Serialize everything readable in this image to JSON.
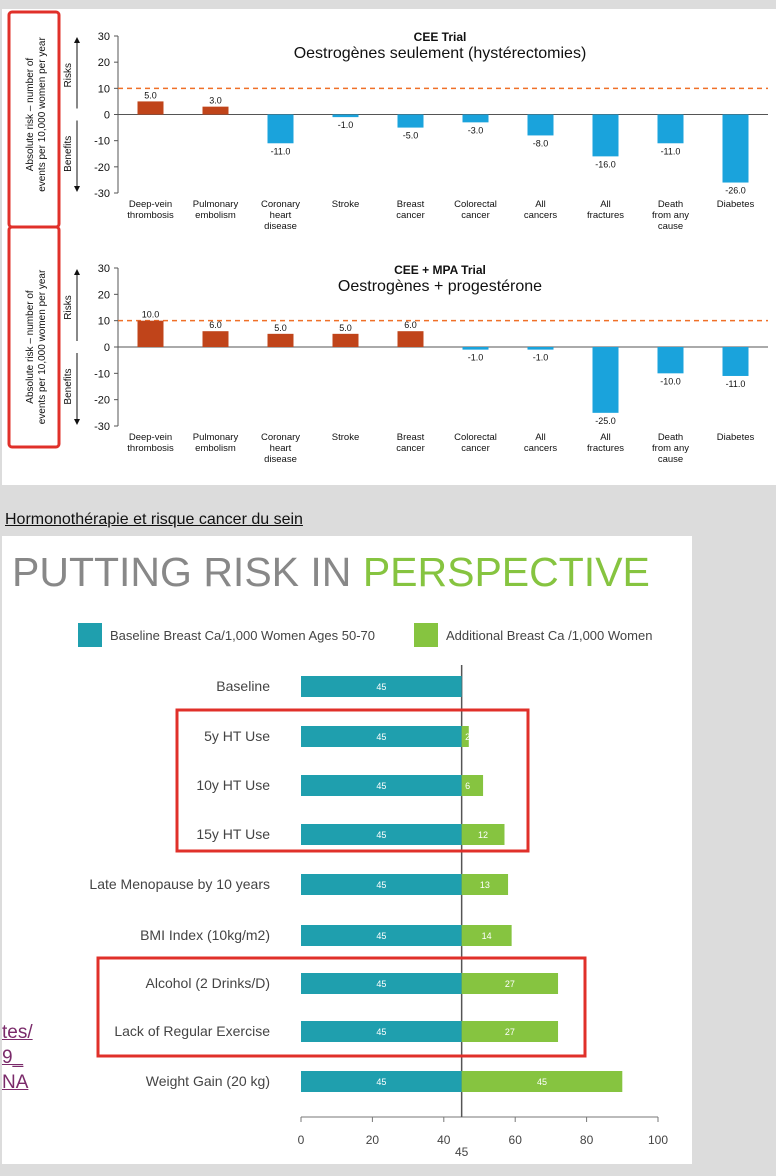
{
  "section_title": "Hormonothérapie et risque cancer du sein",
  "left_link_fragments": [
    "tes/",
    "9_",
    "NA"
  ],
  "colors": {
    "risk": "#c0441a",
    "benefit": "#1aa3dc",
    "baseline": "#1f9fae",
    "additional": "#86c440",
    "highlight": "#e0302a",
    "threshold": "#f07028"
  },
  "chart_data": [
    {
      "type": "bar",
      "title": "CEE Trial",
      "subtitle": "Oestrogènes seulement (hystérectomies)",
      "ylabel": "Absolute risk – number of events per 10,000 women per year",
      "risk_label": "Risks",
      "benefit_label": "Benefits",
      "ylim": [
        -30,
        30
      ],
      "yticks": [
        30,
        20,
        10,
        0,
        -10,
        -20,
        -30
      ],
      "threshold": 10,
      "categories": [
        [
          "Deep-vein",
          "thrombosis"
        ],
        [
          "Pulmonary",
          "embolism"
        ],
        [
          "Coronary",
          "heart",
          "disease"
        ],
        [
          "Stroke"
        ],
        [
          "Breast",
          "cancer"
        ],
        [
          "Colorectal",
          "cancer"
        ],
        [
          "All",
          "cancers"
        ],
        [
          "All",
          "fractures"
        ],
        [
          "Death",
          "from any",
          "cause"
        ],
        [
          "Diabetes"
        ]
      ],
      "values": [
        5.0,
        3.0,
        -11.0,
        -1.0,
        -5.0,
        -3.0,
        -8.0,
        -16.0,
        -11.0,
        -26.0
      ],
      "value_labels": [
        "5.0",
        "3.0",
        "-11.0",
        "-1.0",
        "-5.0",
        "-3.0",
        "-8.0",
        "-16.0",
        "-11.0",
        "-26.0"
      ]
    },
    {
      "type": "bar",
      "title": "CEE + MPA Trial",
      "subtitle": "Oestrogènes + progestérone",
      "ylabel": "Absolute risk – number of events per 10,000 women per year",
      "risk_label": "Risks",
      "benefit_label": "Benefits",
      "ylim": [
        -30,
        30
      ],
      "yticks": [
        30,
        20,
        10,
        0,
        -10,
        -20,
        -30
      ],
      "threshold": 10,
      "categories": [
        [
          "Deep-vein",
          "thrombosis"
        ],
        [
          "Pulmonary",
          "embolism"
        ],
        [
          "Coronary",
          "heart",
          "disease"
        ],
        [
          "Stroke"
        ],
        [
          "Breast",
          "cancer"
        ],
        [
          "Colorectal",
          "cancer"
        ],
        [
          "All",
          "cancers"
        ],
        [
          "All",
          "fractures"
        ],
        [
          "Death",
          "from any",
          "cause"
        ],
        [
          "Diabetes"
        ]
      ],
      "values": [
        10.0,
        6.0,
        5.0,
        5.0,
        6.0,
        -1.0,
        -1.0,
        -25.0,
        -10.0,
        -11.0
      ],
      "value_labels": [
        "10.0",
        "6.0",
        "5.0",
        "5.0",
        "6.0",
        "-1.0",
        "-1.0",
        "-25.0",
        "-10.0",
        "-11.0"
      ]
    },
    {
      "type": "bar",
      "orientation": "horizontal-stacked",
      "title_part1": "PUTTING RISK IN ",
      "title_part2": "PERSPECTIVE",
      "legend": [
        "Baseline Breast Ca/1,000 Women Ages 50-70",
        "Additional Breast Ca /1,000 Women"
      ],
      "xlim": [
        0,
        100
      ],
      "xticks": [
        "0",
        "20",
        "40",
        "60",
        "80",
        "100"
      ],
      "reference_label": "45",
      "reference_value": 45,
      "categories": [
        "Baseline",
        "5y HT Use",
        "10y HT Use",
        "15y HT Use",
        "Late Menopause by 10 years",
        "BMI Index (10kg/m2)",
        "Alcohol (2 Drinks/D)",
        "Lack of Regular Exercise",
        "Weight Gain (20 kg)"
      ],
      "series": [
        {
          "name": "Baseline Breast Ca/1,000 Women Ages 50-70",
          "values": [
            45,
            45,
            45,
            45,
            45,
            45,
            45,
            45,
            45
          ]
        },
        {
          "name": "Additional Breast Ca /1,000 Women",
          "values": [
            0,
            2,
            6,
            12,
            13,
            14,
            27,
            27,
            45
          ]
        }
      ],
      "baseline_labels": [
        "45",
        "45",
        "45",
        "45",
        "45",
        "45",
        "45",
        "45",
        "45"
      ],
      "additional_labels": [
        "",
        "2",
        "6",
        "12",
        "13",
        "14",
        "27",
        "27",
        "45"
      ]
    }
  ]
}
